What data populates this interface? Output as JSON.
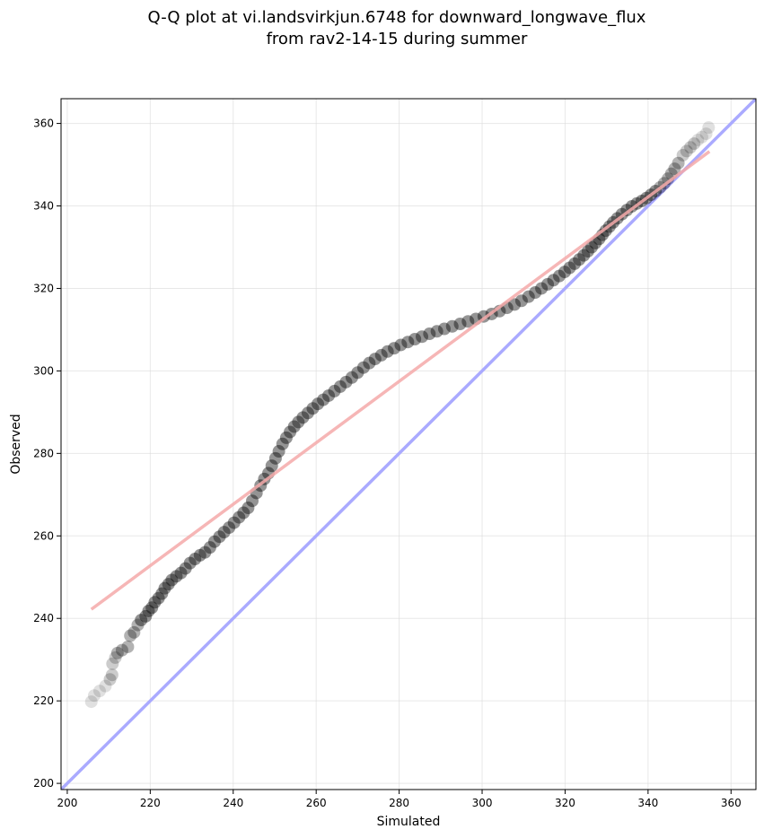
{
  "chart_data": {
    "type": "scatter",
    "title_lines": [
      "Q-Q plot at vi.landsvirkjun.6748 for downward_longwave_flux",
      "from rav2-14-15 during summer"
    ],
    "xlabel": "Simulated",
    "ylabel": "Observed",
    "xlim": [
      198.5,
      366
    ],
    "ylim": [
      198.5,
      366
    ],
    "xticks": [
      200,
      220,
      240,
      260,
      280,
      300,
      320,
      340,
      360
    ],
    "yticks": [
      200,
      220,
      240,
      260,
      280,
      300,
      320,
      340,
      360
    ],
    "grid": true,
    "reference_line": {
      "name": "1:1 line",
      "color": "#aaaaff",
      "from": [
        198.5,
        198.5
      ],
      "to": [
        366,
        366
      ]
    },
    "fit_line": {
      "name": "linear fit",
      "color": "#f5a9a9",
      "from": [
        205.8,
        242.2
      ],
      "to": [
        354.8,
        353.2
      ]
    },
    "series": [
      {
        "name": "quantiles",
        "color": "#000000",
        "points": [
          [
            205.8,
            219.8
          ],
          [
            206.5,
            221.3
          ],
          [
            207.8,
            222.4
          ],
          [
            209.2,
            223.6
          ],
          [
            210.3,
            225.2
          ],
          [
            210.8,
            226.3
          ],
          [
            210.9,
            229.0
          ],
          [
            211.6,
            230.5
          ],
          [
            212.1,
            231.6
          ],
          [
            213.2,
            232.3
          ],
          [
            214.6,
            233.1
          ],
          [
            215.2,
            235.8
          ],
          [
            216.1,
            236.6
          ],
          [
            217.0,
            238.4
          ],
          [
            217.8,
            239.6
          ],
          [
            218.9,
            240.5
          ],
          [
            219.6,
            241.8
          ],
          [
            220.4,
            242.6
          ],
          [
            221.1,
            243.9
          ],
          [
            222.0,
            244.9
          ],
          [
            222.8,
            246.0
          ],
          [
            223.5,
            247.3
          ],
          [
            224.4,
            248.3
          ],
          [
            225.2,
            249.3
          ],
          [
            226.3,
            250.2
          ],
          [
            227.4,
            251.0
          ],
          [
            228.5,
            252.1
          ],
          [
            229.6,
            253.4
          ],
          [
            230.8,
            254.4
          ],
          [
            232.0,
            255.3
          ],
          [
            233.2,
            256.0
          ],
          [
            234.4,
            257.2
          ],
          [
            235.5,
            258.6
          ],
          [
            236.7,
            259.8
          ],
          [
            237.8,
            260.9
          ],
          [
            239.0,
            262.0
          ],
          [
            240.2,
            263.2
          ],
          [
            241.4,
            264.5
          ],
          [
            242.5,
            265.6
          ],
          [
            243.6,
            266.8
          ],
          [
            244.6,
            268.5
          ],
          [
            245.6,
            270.4
          ],
          [
            246.6,
            272.2
          ],
          [
            247.5,
            273.8
          ],
          [
            248.5,
            275.2
          ],
          [
            249.3,
            277.0
          ],
          [
            250.2,
            278.8
          ],
          [
            251.0,
            280.5
          ],
          [
            251.9,
            282.3
          ],
          [
            252.8,
            283.8
          ],
          [
            253.7,
            285.2
          ],
          [
            254.7,
            286.5
          ],
          [
            255.7,
            287.6
          ],
          [
            256.8,
            288.7
          ],
          [
            258.0,
            289.8
          ],
          [
            259.2,
            290.9
          ],
          [
            260.4,
            292.0
          ],
          [
            261.7,
            293.0
          ],
          [
            263.0,
            294.0
          ],
          [
            264.4,
            295.1
          ],
          [
            265.8,
            296.2
          ],
          [
            267.2,
            297.3
          ],
          [
            268.6,
            298.4
          ],
          [
            270.0,
            299.6
          ],
          [
            271.4,
            300.8
          ],
          [
            272.8,
            301.9
          ],
          [
            274.2,
            302.9
          ],
          [
            275.7,
            303.8
          ],
          [
            277.2,
            304.7
          ],
          [
            278.8,
            305.5
          ],
          [
            280.4,
            306.3
          ],
          [
            282.1,
            307.0
          ],
          [
            283.8,
            307.7
          ],
          [
            285.5,
            308.3
          ],
          [
            287.3,
            309.0
          ],
          [
            289.1,
            309.6
          ],
          [
            290.9,
            310.2
          ],
          [
            292.8,
            310.8
          ],
          [
            294.7,
            311.4
          ],
          [
            296.6,
            312.0
          ],
          [
            298.5,
            312.6
          ],
          [
            300.4,
            313.2
          ],
          [
            302.3,
            313.8
          ],
          [
            304.2,
            314.5
          ],
          [
            306.0,
            315.3
          ],
          [
            307.8,
            316.1
          ],
          [
            309.5,
            317.0
          ],
          [
            311.2,
            318.0
          ],
          [
            312.8,
            319.0
          ],
          [
            314.3,
            320.0
          ],
          [
            315.8,
            321.0
          ],
          [
            317.2,
            322.0
          ],
          [
            318.6,
            323.0
          ],
          [
            319.9,
            324.0
          ],
          [
            321.1,
            325.0
          ],
          [
            322.3,
            326.0
          ],
          [
            323.4,
            327.0
          ],
          [
            324.5,
            328.0
          ],
          [
            325.5,
            329.0
          ],
          [
            326.4,
            330.0
          ],
          [
            327.3,
            331.0
          ],
          [
            328.2,
            332.0
          ],
          [
            329.0,
            333.0
          ],
          [
            329.8,
            334.0
          ],
          [
            330.7,
            335.0
          ],
          [
            331.6,
            336.0
          ],
          [
            332.6,
            337.0
          ],
          [
            333.7,
            338.0
          ],
          [
            334.9,
            339.0
          ],
          [
            336.1,
            339.9
          ],
          [
            337.3,
            340.6
          ],
          [
            338.5,
            341.2
          ],
          [
            339.6,
            341.9
          ],
          [
            340.7,
            342.7
          ],
          [
            341.8,
            343.6
          ],
          [
            342.9,
            344.5
          ],
          [
            343.9,
            345.5
          ],
          [
            344.8,
            346.6
          ],
          [
            345.6,
            347.8
          ],
          [
            346.4,
            349.0
          ],
          [
            347.3,
            350.4
          ],
          [
            348.4,
            352.3
          ],
          [
            349.3,
            353.3
          ],
          [
            350.2,
            354.2
          ],
          [
            351.1,
            355.1
          ],
          [
            352.0,
            356.0
          ],
          [
            353.0,
            356.7
          ],
          [
            354.0,
            357.5
          ],
          [
            354.6,
            359.0
          ]
        ]
      }
    ]
  }
}
